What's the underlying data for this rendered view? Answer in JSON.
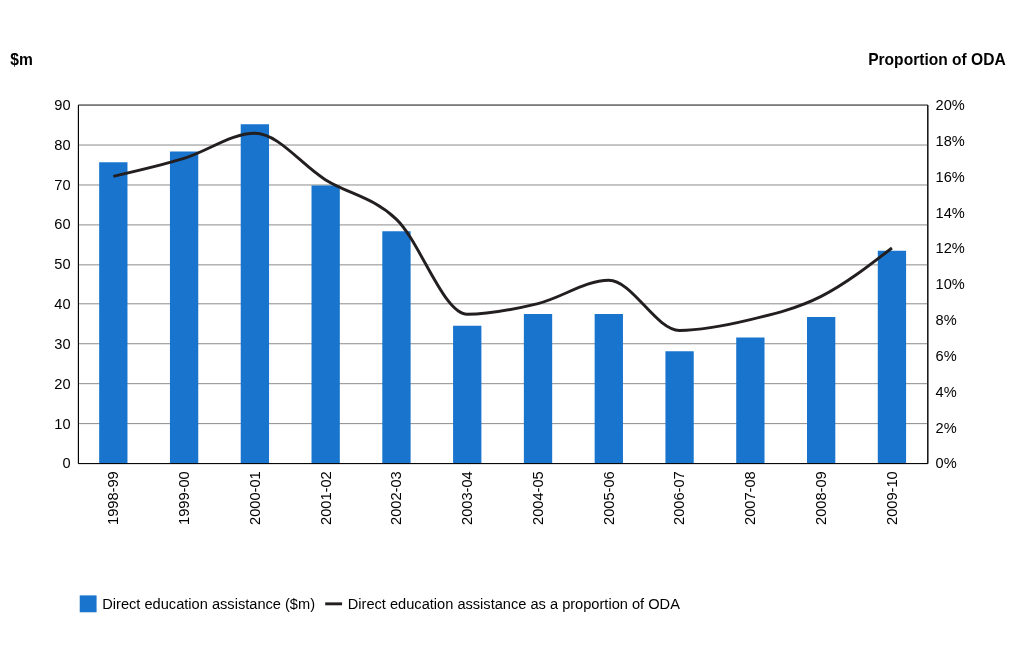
{
  "chart_data": {
    "type": "bar",
    "ylabel": "$m",
    "y2label": "Proportion of ODA",
    "categories": [
      "1998-99",
      "1999-00",
      "2000-01",
      "2001-02",
      "2002-03",
      "2003-04",
      "2004-05",
      "2005-06",
      "2006-07",
      "2007-08",
      "2008-09",
      "2009-10"
    ],
    "series": [
      {
        "name": "Direct education assistance ($m)",
        "color": "#1874cd",
        "values": [
          75.5,
          78.2,
          85.1,
          69.7,
          58.2,
          34.5,
          37.4,
          37.4,
          28.1,
          31.5,
          36.7,
          53.3
        ]
      },
      {
        "name": "Direct education assistance as a proportion of ODA",
        "type": "line",
        "axis": "y2",
        "color": "#231f20",
        "values": [
          16.0,
          17.0,
          18.4,
          15.8,
          13.6,
          8.3,
          8.9,
          10.2,
          7.4,
          8.0,
          9.3,
          12.0
        ]
      }
    ],
    "ylim": [
      0,
      90
    ],
    "yticks": [
      0,
      10,
      20,
      30,
      40,
      50,
      60,
      70,
      80,
      90
    ],
    "y2lim": [
      0,
      20
    ],
    "y2ticks": [
      {
        "value": 0,
        "label": "0%"
      },
      {
        "value": 2,
        "label": "2%"
      },
      {
        "value": 4,
        "label": "4%"
      },
      {
        "value": 6,
        "label": "6%"
      },
      {
        "value": 8,
        "label": "8%"
      },
      {
        "value": 10,
        "label": "10%"
      },
      {
        "value": 12,
        "label": "12%"
      },
      {
        "value": 14,
        "label": "14%"
      },
      {
        "value": 16,
        "label": "16%"
      },
      {
        "value": 18,
        "label": "18%"
      },
      {
        "value": 20,
        "label": "20%"
      }
    ],
    "grid": "y",
    "legend": "bottom",
    "marker": "none",
    "line_style": "solid"
  }
}
